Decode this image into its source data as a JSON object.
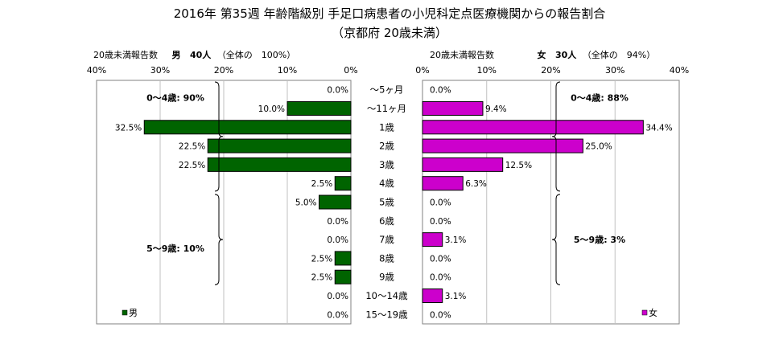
{
  "title_line1": "2016年 第35週 年齢階級別 手足口病患者の小児科定点医療機関からの報告割合",
  "title_line2": "（京都府 20歳未満）",
  "left_header": {
    "label": "20歳未満報告数",
    "sex": "男",
    "count": "40人",
    "total": "（全体の　100%）"
  },
  "right_header": {
    "label": "20歳未満報告数",
    "sex": "女",
    "count": "30人",
    "total": "（全体の　94%）"
  },
  "chart_data": {
    "type": "bar",
    "orientation": "horizontal-back-to-back",
    "categories": [
      "～5ヶ月",
      "～11ヶ月",
      "1歳",
      "2歳",
      "3歳",
      "4歳",
      "5歳",
      "6歳",
      "7歳",
      "8歳",
      "9歳",
      "10～14歳",
      "15～19歳"
    ],
    "left_ticks": [
      "40%",
      "30%",
      "20%",
      "10%",
      "0%"
    ],
    "right_ticks": [
      "0%",
      "10%",
      "20%",
      "30%",
      "40%"
    ],
    "xlim": [
      0,
      40
    ],
    "series": [
      {
        "name": "男",
        "side": "left",
        "color": "#006400",
        "values": [
          0.0,
          10.0,
          32.5,
          22.5,
          22.5,
          2.5,
          5.0,
          0.0,
          0.0,
          2.5,
          2.5,
          0.0,
          0.0
        ],
        "labels": [
          "0.0%",
          "10.0%",
          "32.5%",
          "22.5%",
          "22.5%",
          "2.5%",
          "5.0%",
          "0.0%",
          "0.0%",
          "2.5%",
          "2.5%",
          "0.0%",
          "0.0%"
        ],
        "groups": [
          {
            "text": "0～4歳: 90%",
            "from": 0,
            "to": 5
          },
          {
            "text": "5～9歳: 10%",
            "from": 6,
            "to": 10
          }
        ]
      },
      {
        "name": "女",
        "side": "right",
        "color": "#CC00CC",
        "values": [
          0.0,
          9.4,
          34.4,
          25.0,
          12.5,
          6.3,
          0.0,
          0.0,
          3.1,
          0.0,
          0.0,
          3.1,
          0.0
        ],
        "labels": [
          "0.0%",
          "9.4%",
          "34.4%",
          "25.0%",
          "12.5%",
          "6.3%",
          "0.0%",
          "0.0%",
          "3.1%",
          "0.0%",
          "0.0%",
          "3.1%",
          "0.0%"
        ],
        "groups": [
          {
            "text": "0～4歳: 88%",
            "from": 0,
            "to": 5
          },
          {
            "text": "5～9歳: 3%",
            "from": 6,
            "to": 10
          }
        ]
      }
    ],
    "grid": true
  }
}
